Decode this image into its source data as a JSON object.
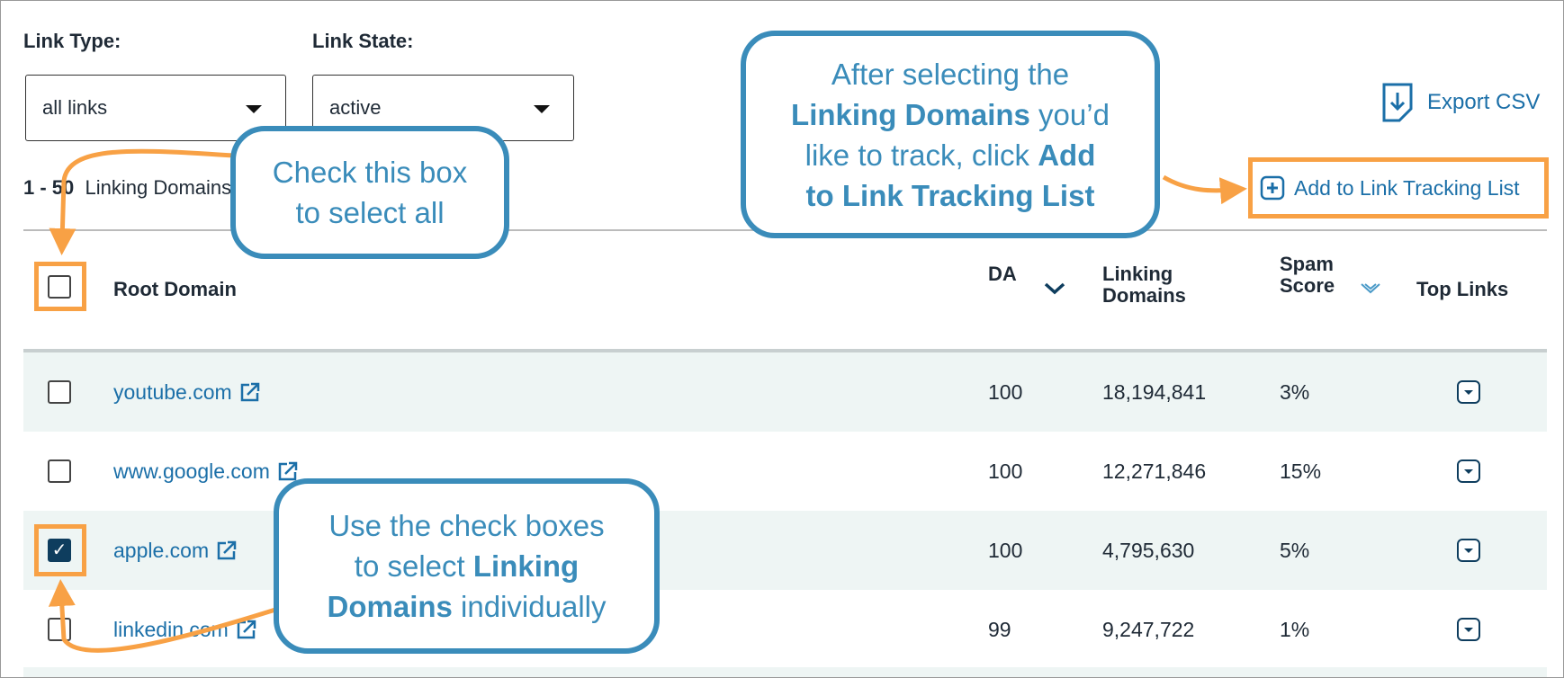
{
  "filters": [
    {
      "label": "Link Type:",
      "value": "all links"
    },
    {
      "label": "Link State:",
      "value": "active"
    }
  ],
  "results": {
    "range": "1 - 50",
    "label": "Linking Domains"
  },
  "export": "Export CSV",
  "add_button": "Add to Link Tracking List",
  "table": {
    "headers": [
      "Root Domain",
      "DA",
      "Linking Domains",
      "Spam Score",
      "Top Links"
    ],
    "rows": [
      {
        "domain": "youtube.com",
        "da": 100,
        "linking_domains": "18,194,841",
        "spam_score": "3%",
        "checked": false
      },
      {
        "domain": "www.google.com",
        "da": 100,
        "linking_domains": "12,271,846",
        "spam_score": "15%",
        "checked": false
      },
      {
        "domain": "apple.com",
        "da": 100,
        "linking_domains": "4,795,630",
        "spam_score": "5%",
        "checked": true
      },
      {
        "domain": "linkedin.com",
        "da": 99,
        "linking_domains": "9,247,722",
        "spam_score": "1%",
        "checked": false
      }
    ]
  },
  "callouts": [
    {
      "lines": [
        [
          {
            "text": "Check this box",
            "bold": false
          }
        ],
        [
          {
            "text": "to select all",
            "bold": false
          }
        ]
      ]
    },
    {
      "lines": [
        [
          {
            "text": "After selecting the",
            "bold": false
          }
        ],
        [
          {
            "text": "Linking Domains",
            "bold": true
          },
          {
            "text": " you’d",
            "bold": false
          }
        ],
        [
          {
            "text": "like to track, click ",
            "bold": false
          },
          {
            "text": "Add",
            "bold": true
          }
        ],
        [
          {
            "text": "to Link Tracking List",
            "bold": true
          }
        ]
      ]
    },
    {
      "lines": [
        [
          {
            "text": "Use the check boxes",
            "bold": false
          }
        ],
        [
          {
            "text": "to select ",
            "bold": false
          },
          {
            "text": "Linking",
            "bold": true
          }
        ],
        [
          {
            "text": "Domains",
            "bold": true
          },
          {
            "text": " individually",
            "bold": false
          }
        ]
      ]
    }
  ]
}
